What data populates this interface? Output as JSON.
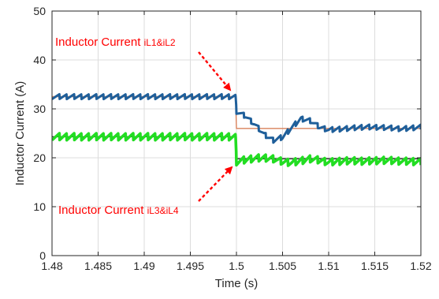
{
  "chart_data": {
    "type": "line",
    "title": "",
    "xlabel": "Time (s)",
    "ylabel": "Inductor Current (A)",
    "xlim": [
      1.48,
      1.52
    ],
    "ylim": [
      0,
      50
    ],
    "xticks": [
      1.48,
      1.485,
      1.49,
      1.495,
      1.5,
      1.505,
      1.51,
      1.515,
      1.52
    ],
    "xtick_labels": [
      "1.48",
      "1.485",
      "1.49",
      "1.495",
      "1.5",
      "1.505",
      "1.51",
      "1.515",
      "1.52"
    ],
    "yticks": [
      0,
      10,
      20,
      30,
      40,
      50
    ],
    "ytick_labels": [
      "0",
      "10",
      "20",
      "30",
      "40",
      "50"
    ],
    "grid": true,
    "colors": {
      "iL1_iL2": "#1f5f9a",
      "iL1_iL2_reference": "#d9825b",
      "iL3_iL4": "#22dd22",
      "iL3_iL4_reference": "#333333",
      "annotation": "#ff0000"
    },
    "series": [
      {
        "key": "iL1_iL2",
        "x": [
          1.48,
          1.4999,
          1.5,
          1.501,
          1.502,
          1.503,
          1.504,
          1.505,
          1.506,
          1.507,
          1.508,
          1.509,
          1.51,
          1.512,
          1.514,
          1.516,
          1.518,
          1.52
        ],
        "y": [
          32.5,
          32.5,
          29.5,
          28.5,
          26.8,
          24.8,
          23.6,
          24.2,
          26.2,
          28.0,
          27.6,
          26.3,
          25.7,
          26.0,
          26.3,
          26.2,
          25.9,
          26.3
        ],
        "ripple": 0.5
      },
      {
        "key": "iL1_iL2_reference",
        "x": [
          1.48,
          1.4999,
          1.5,
          1.52
        ],
        "y": [
          32.5,
          32.5,
          26.0,
          26.0
        ]
      },
      {
        "key": "iL3_iL4",
        "x": [
          1.48,
          1.4999,
          1.5,
          1.501,
          1.502,
          1.503,
          1.504,
          1.505,
          1.506,
          1.507,
          1.508,
          1.509,
          1.51,
          1.512,
          1.514,
          1.516,
          1.518,
          1.52
        ],
        "y": [
          24.3,
          24.3,
          19.2,
          19.6,
          19.9,
          20.0,
          19.8,
          19.2,
          19.0,
          19.4,
          19.8,
          19.5,
          19.1,
          19.4,
          19.3,
          19.5,
          19.3,
          19.2
        ],
        "ripple": 0.7
      },
      {
        "key": "iL3_iL4_reference",
        "x": [
          1.48,
          1.4999,
          1.5,
          1.52
        ],
        "y": [
          24.3,
          24.3,
          19.8,
          19.8
        ]
      }
    ],
    "annotations": [
      {
        "text": "Inductor Current ",
        "sub": "iL1&iL2"
      },
      {
        "text": "Inductor Current ",
        "sub": "iL3&iL4"
      }
    ]
  }
}
